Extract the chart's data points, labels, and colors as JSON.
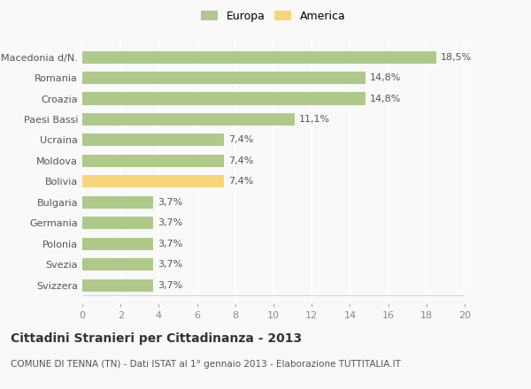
{
  "categories": [
    "Svizzera",
    "Svezia",
    "Polonia",
    "Germania",
    "Bulgaria",
    "Bolivia",
    "Moldova",
    "Ucraina",
    "Paesi Bassi",
    "Croazia",
    "Romania",
    "Macedonia d/N."
  ],
  "values": [
    3.7,
    3.7,
    3.7,
    3.7,
    3.7,
    7.4,
    7.4,
    7.4,
    11.1,
    14.8,
    14.8,
    18.5
  ],
  "colors": [
    "#aec98a",
    "#aec98a",
    "#aec98a",
    "#aec98a",
    "#aec98a",
    "#f7d67a",
    "#aec98a",
    "#aec98a",
    "#aec98a",
    "#aec98a",
    "#aec98a",
    "#aec98a"
  ],
  "labels": [
    "3,7%",
    "3,7%",
    "3,7%",
    "3,7%",
    "3,7%",
    "7,4%",
    "7,4%",
    "7,4%",
    "11,1%",
    "14,8%",
    "14,8%",
    "18,5%"
  ],
  "europa_color": "#aec98a",
  "america_color": "#f7d67a",
  "legend_europa": "Europa",
  "legend_america": "America",
  "xlim": [
    0,
    20
  ],
  "xticks": [
    0,
    2,
    4,
    6,
    8,
    10,
    12,
    14,
    16,
    18,
    20
  ],
  "title": "Cittadini Stranieri per Cittadinanza - 2013",
  "subtitle": "COMUNE DI TENNA (TN) - Dati ISTAT al 1° gennaio 2013 - Elaborazione TUTTITALIA.IT",
  "background_color": "#f9f9f9",
  "grid_color": "#ffffff",
  "label_fontsize": 8,
  "bar_label_fontsize": 8,
  "title_fontsize": 10,
  "subtitle_fontsize": 7.5
}
